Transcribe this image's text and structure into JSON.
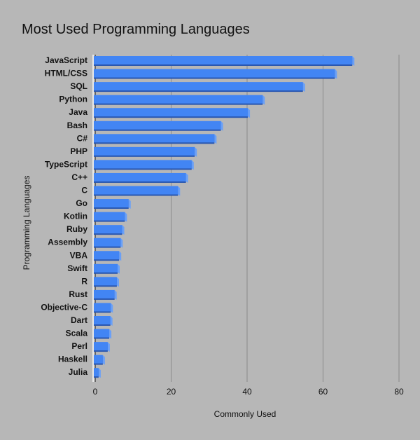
{
  "chart_data": {
    "type": "bar",
    "orientation": "horizontal",
    "title": "Most Used Programming Languages",
    "xlabel": "Commonly Used",
    "ylabel": "Programming Languages",
    "xlim": [
      0,
      80
    ],
    "xticks": [
      0,
      20,
      40,
      60,
      80
    ],
    "grid": true,
    "categories": [
      "JavaScript",
      "HTML/CSS",
      "SQL",
      "Python",
      "Java",
      "Bash",
      "C#",
      "PHP",
      "TypeScript",
      "C++",
      "C",
      "Go",
      "Kotlin",
      "Ruby",
      "Assembly",
      "VBA",
      "Swift",
      "R",
      "Rust",
      "Objective-C",
      "Dart",
      "Scala",
      "Perl",
      "Haskell",
      "Julia"
    ],
    "values": [
      67.7,
      63.1,
      54.7,
      44.1,
      40.2,
      33.1,
      31.4,
      26.2,
      25.4,
      23.9,
      21.8,
      8.8,
      7.8,
      7.1,
      6.7,
      6.3,
      5.9,
      5.7,
      5.1,
      4.1,
      4.0,
      3.7,
      3.3,
      2.0,
      0.9
    ],
    "colors": {
      "bar": "#4285f4",
      "bar_shadow": "#2a57b0",
      "bar_bevel": "#6aa0f7",
      "background": "#b7b7b7",
      "grid": "#8a8a8a"
    }
  }
}
